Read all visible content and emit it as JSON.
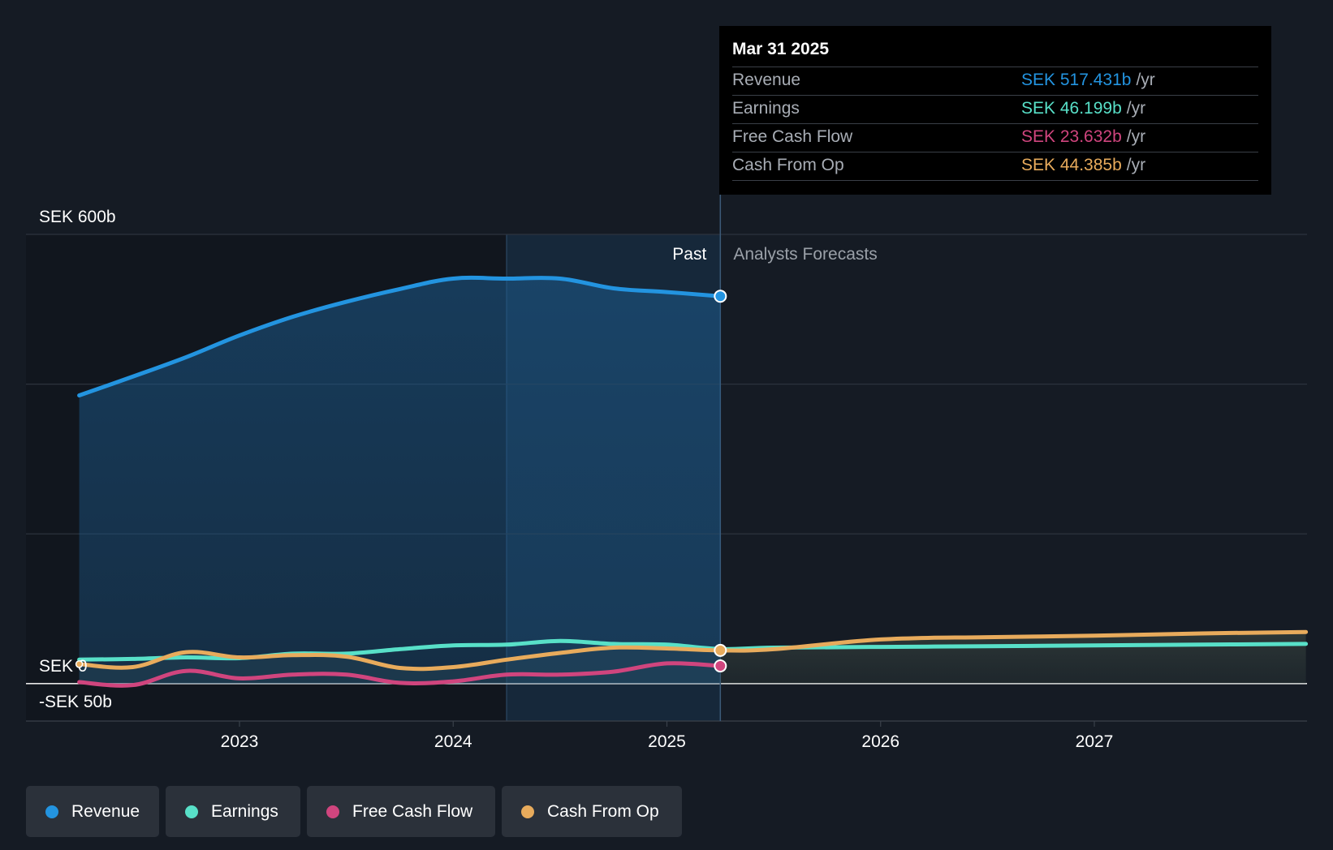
{
  "colors": {
    "revenue": "#2394e0",
    "earnings": "#58e0c8",
    "fcf": "#d0457e",
    "cfo": "#e8ab5c",
    "background": "#151b24"
  },
  "tooltip": {
    "date": "Mar 31 2025",
    "rows": [
      {
        "label": "Revenue",
        "value": "SEK 517.431b",
        "unit": "/yr",
        "color": "#2394e0"
      },
      {
        "label": "Earnings",
        "value": "SEK 46.199b",
        "unit": "/yr",
        "color": "#58e0c8"
      },
      {
        "label": "Free Cash Flow",
        "value": "SEK 23.632b",
        "unit": "/yr",
        "color": "#d0457e"
      },
      {
        "label": "Cash From Op",
        "value": "SEK 44.385b",
        "unit": "/yr",
        "color": "#e8ab5c"
      }
    ]
  },
  "legend": [
    {
      "label": "Revenue",
      "color": "#2394e0",
      "icon": "revenue-dot-icon"
    },
    {
      "label": "Earnings",
      "color": "#58e0c8",
      "icon": "earnings-dot-icon"
    },
    {
      "label": "Free Cash Flow",
      "color": "#d0457e",
      "icon": "fcf-dot-icon"
    },
    {
      "label": "Cash From Op",
      "color": "#e8ab5c",
      "icon": "cfo-dot-icon"
    }
  ],
  "chart_data": {
    "type": "line",
    "y_unit": "SEK b",
    "ylim": [
      -50,
      600
    ],
    "y_ticks": [
      {
        "value": 600,
        "label": "SEK 600b"
      },
      {
        "value": 0,
        "label": "SEK 0"
      },
      {
        "value": -50,
        "label": "-SEK 50b"
      }
    ],
    "x_ticks": [
      2023,
      2024,
      2025,
      2026,
      2027
    ],
    "xlim": [
      2022.25,
      2027.99
    ],
    "past_label": "Past",
    "forecast_label": "Analysts Forecasts",
    "past_end": 2025.25,
    "highlight_start": 2024.25,
    "series": [
      {
        "name": "Revenue",
        "key": "revenue",
        "points": [
          [
            2022.25,
            385
          ],
          [
            2022.5,
            410
          ],
          [
            2022.75,
            436
          ],
          [
            2023.0,
            465
          ],
          [
            2023.25,
            490
          ],
          [
            2023.5,
            510
          ],
          [
            2023.75,
            527
          ],
          [
            2024.0,
            541
          ],
          [
            2024.25,
            541
          ],
          [
            2024.5,
            541
          ],
          [
            2024.75,
            528
          ],
          [
            2025.0,
            523
          ],
          [
            2025.25,
            517.431
          ]
        ]
      },
      {
        "name": "Earnings",
        "key": "earnings",
        "points": [
          [
            2022.25,
            32
          ],
          [
            2022.5,
            33
          ],
          [
            2022.75,
            35
          ],
          [
            2023.0,
            34
          ],
          [
            2023.25,
            40
          ],
          [
            2023.5,
            40
          ],
          [
            2023.75,
            46
          ],
          [
            2024.0,
            51
          ],
          [
            2024.25,
            52
          ],
          [
            2024.5,
            57
          ],
          [
            2024.75,
            53
          ],
          [
            2025.0,
            52
          ],
          [
            2025.25,
            46.199
          ],
          [
            2025.5,
            48
          ],
          [
            2026.0,
            49
          ],
          [
            2026.5,
            50
          ],
          [
            2027.0,
            51
          ],
          [
            2027.5,
            52
          ],
          [
            2027.99,
            53
          ]
        ]
      },
      {
        "name": "Free Cash Flow",
        "key": "fcf",
        "points": [
          [
            2022.25,
            2
          ],
          [
            2022.5,
            -2
          ],
          [
            2022.75,
            17
          ],
          [
            2023.0,
            7
          ],
          [
            2023.25,
            12
          ],
          [
            2023.5,
            12
          ],
          [
            2023.75,
            1
          ],
          [
            2024.0,
            3
          ],
          [
            2024.25,
            12
          ],
          [
            2024.5,
            12
          ],
          [
            2024.75,
            16
          ],
          [
            2025.0,
            27
          ],
          [
            2025.25,
            23.632
          ]
        ]
      },
      {
        "name": "Cash From Op",
        "key": "cfo",
        "points": [
          [
            2022.25,
            26
          ],
          [
            2022.5,
            22
          ],
          [
            2022.75,
            42
          ],
          [
            2023.0,
            35
          ],
          [
            2023.25,
            38
          ],
          [
            2023.5,
            36
          ],
          [
            2023.75,
            21
          ],
          [
            2024.0,
            22
          ],
          [
            2024.25,
            32
          ],
          [
            2024.5,
            41
          ],
          [
            2024.75,
            48
          ],
          [
            2025.0,
            47
          ],
          [
            2025.25,
            44.385
          ],
          [
            2025.5,
            46
          ],
          [
            2026.0,
            59
          ],
          [
            2026.5,
            62
          ],
          [
            2027.0,
            64
          ],
          [
            2027.5,
            67
          ],
          [
            2027.99,
            69
          ]
        ]
      }
    ]
  }
}
